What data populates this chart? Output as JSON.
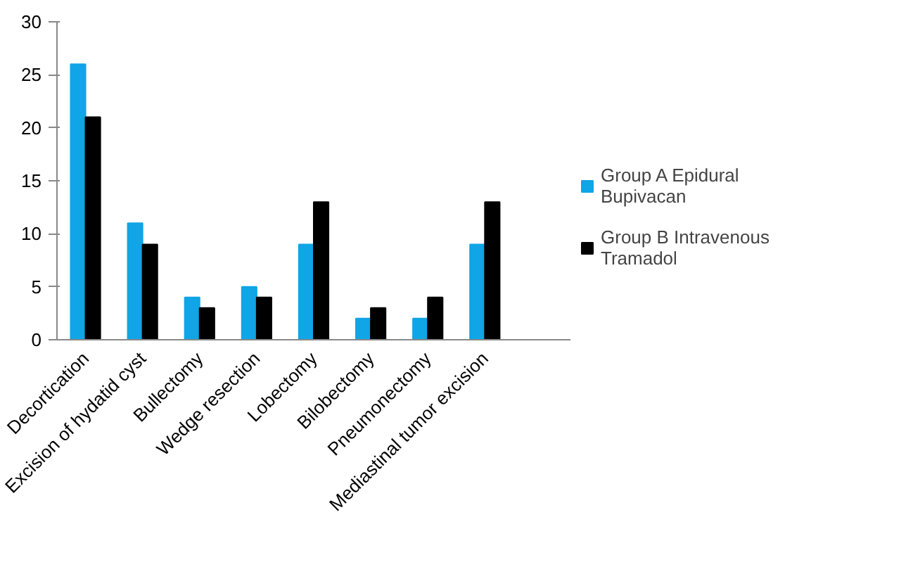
{
  "chart_data": {
    "type": "bar",
    "categories": [
      "Decortication",
      "Excision of hydatid cyst",
      "Bullectomy",
      "Wedge resection",
      "Lobectomy",
      "Bilobectomy",
      "Pneumonectomy",
      "Mediastinal tumor excision",
      null
    ],
    "series": [
      {
        "name": "Group A Epidural Bupivacan",
        "color": "#0fa5e6",
        "values": [
          26,
          11,
          4,
          5,
          9,
          2,
          2,
          9,
          null
        ]
      },
      {
        "name": "Group B Intravenous Tramadol",
        "color": "#000000",
        "values": [
          21,
          9,
          3,
          4,
          13,
          3,
          4,
          13,
          null
        ]
      }
    ],
    "ylim": [
      0,
      30
    ],
    "yticks": [
      0,
      5,
      10,
      15,
      20,
      25,
      30
    ],
    "grid": false,
    "legend": "right"
  }
}
